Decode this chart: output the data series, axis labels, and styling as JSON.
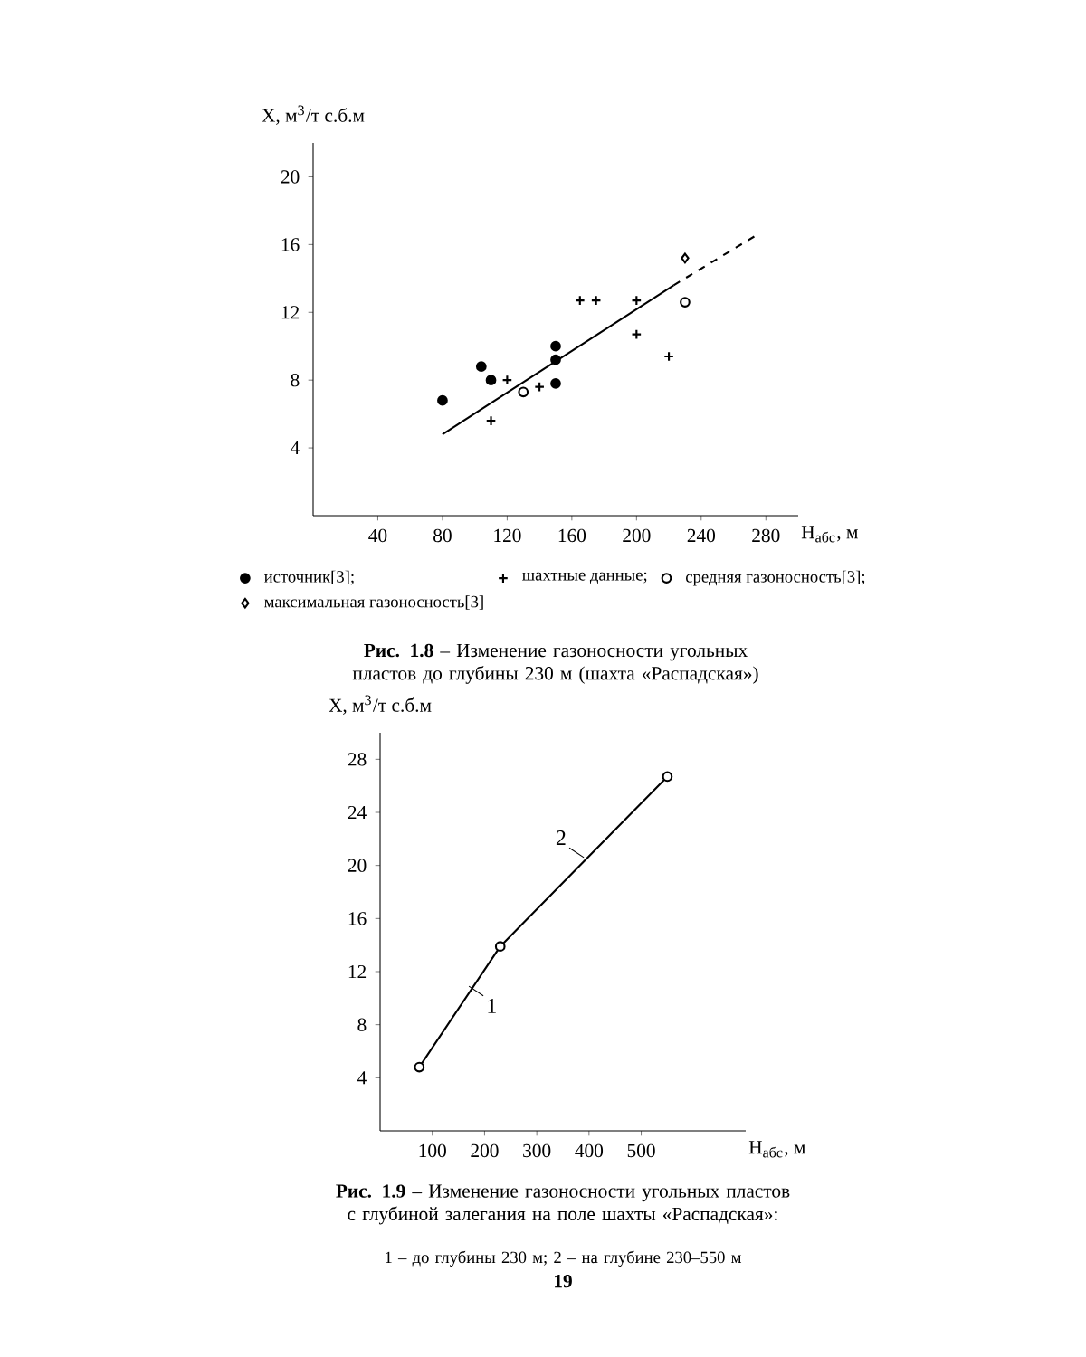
{
  "chart_data": [
    {
      "type": "scatter",
      "title": "**Рис. 1.8** – Изменение газоносности угольных пластов до глубины 230 м (шахта «Распадская»)",
      "xlabel": "H$_{абс}$, м",
      "ylabel": "X, м$^{3}$/т с.б.м",
      "xlim": [
        0,
        300
      ],
      "ylim": [
        0,
        22
      ],
      "xticks": [
        40,
        80,
        120,
        160,
        200,
        240,
        280
      ],
      "yticks": [
        4,
        8,
        12,
        16,
        20
      ],
      "grid": false,
      "legend": "bottom",
      "series": [
        {
          "name": "источник[3];",
          "color": "#000000",
          "marker": "circle",
          "x": [
            80,
            104,
            110,
            150,
            150,
            150
          ],
          "values": [
            6.8,
            8.8,
            8.0,
            10.0,
            9.2,
            7.8
          ]
        },
        {
          "name": "шахтные данные;",
          "color": "#000000",
          "marker": "cross",
          "x": [
            110,
            120,
            140,
            165,
            175,
            200,
            200,
            220
          ],
          "values": [
            5.6,
            8.0,
            7.6,
            12.7,
            12.7,
            12.7,
            10.7,
            9.4
          ]
        },
        {
          "name": "средняя газоносность[3];",
          "color": "#ffffff",
          "marker": "circle",
          "x": [
            130,
            230
          ],
          "values": [
            7.3,
            12.6
          ]
        },
        {
          "name": "максимальная газоносность[3]",
          "color": "#ffffff",
          "marker": "diamond",
          "x": [
            230
          ],
          "values": [
            15.2
          ]
        },
        {
          "type": "line",
          "color": "#000000",
          "line_style": "solid",
          "marker": "none",
          "x": [
            80,
            223
          ],
          "values": [
            4.8,
            13.6
          ]
        },
        {
          "type": "line",
          "color": "#000000",
          "line_style": "dashed",
          "marker": "none",
          "x": [
            223,
            275
          ],
          "values": [
            13.6,
            16.6
          ]
        }
      ]
    },
    {
      "type": "line",
      "title": "**Рис. 1.9** – Изменение газоносности угольных пластов с глубиной залегания на поле шахты «Распадская»:",
      "subtitle": "1 – до глубины 230 м; 2 – на глубине 230–550 м",
      "xlabel": "H$_{абс}$, м",
      "ylabel": "X, м$^{3}$/т с.б.м",
      "xlim": [
        0,
        700
      ],
      "ylim": [
        0,
        30
      ],
      "xticks": [
        100,
        200,
        300,
        400,
        500
      ],
      "yticks": [
        4,
        8,
        12,
        16,
        20,
        24,
        28
      ],
      "grid": false,
      "legend": false,
      "marker": "circle",
      "line_style": "solid",
      "series": [
        {
          "color": "#000000",
          "x": [
            75,
            230,
            550
          ],
          "values": [
            4.8,
            13.9,
            26.7
          ]
        }
      ],
      "annotations": [
        {
          "text": "1",
          "x": 170,
          "y": 10.9
        },
        {
          "text": "2",
          "x": 390,
          "y": 20.6
        },
        "19"
      ]
    }
  ]
}
